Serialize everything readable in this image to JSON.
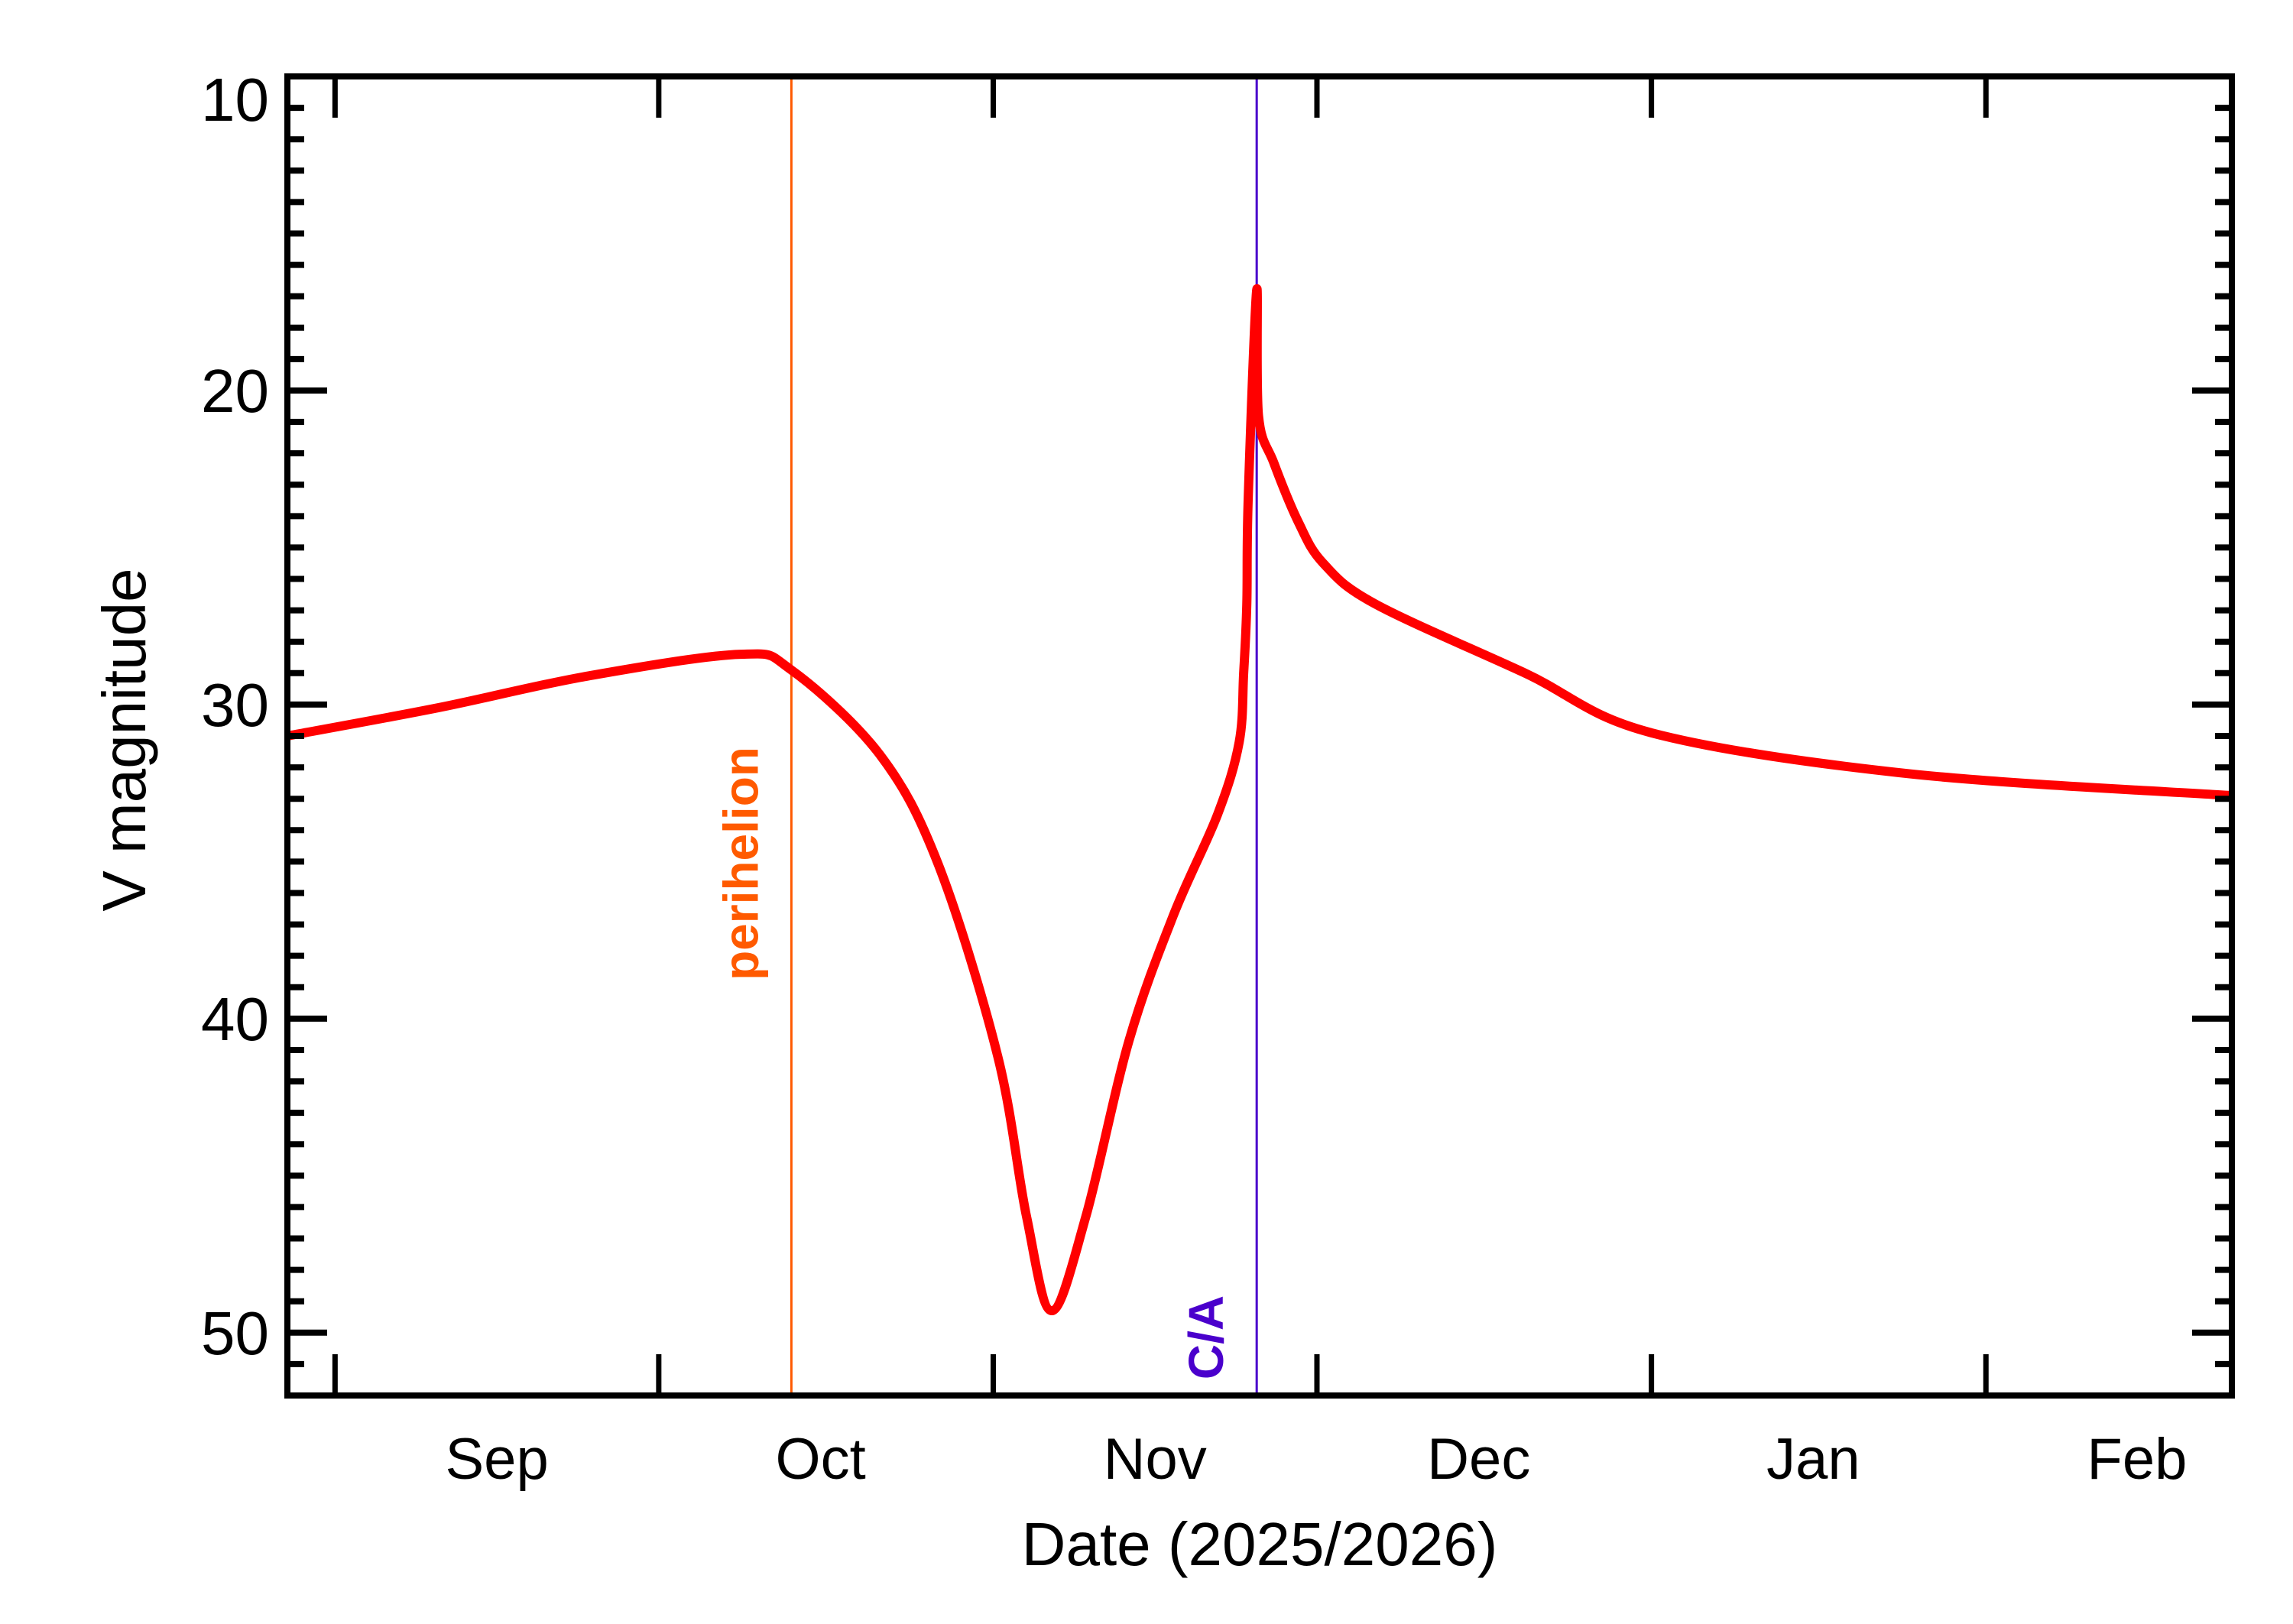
{
  "chart_data": {
    "type": "line",
    "title": "",
    "xlabel": "Date (2025/2026)",
    "ylabel": "V magnitude",
    "xlim": [
      "2025-08-27T14:00",
      "2026-02-23T19:00"
    ],
    "ylim": [
      52,
      10
    ],
    "y_inverted": true,
    "grid": false,
    "y_major_ticks": [
      10,
      20,
      30,
      40,
      50
    ],
    "y_tick_labels": [
      "10",
      "20",
      "30",
      "40",
      "50"
    ],
    "y_minor_step": 1,
    "x_major_ticks": [
      "2025-09-01",
      "2025-10-01",
      "2025-11-01",
      "2025-12-01",
      "2026-01-01",
      "2026-02-01"
    ],
    "x_tick_labels": [
      {
        "label": "Sep",
        "date": "2025-09-16"
      },
      {
        "label": "Oct",
        "date": "2025-10-16"
      },
      {
        "label": "Nov",
        "date": "2025-11-16"
      },
      {
        "label": "Dec",
        "date": "2025-12-16"
      },
      {
        "label": "Jan",
        "date": "2026-01-16"
      },
      {
        "label": "Feb",
        "date": "2026-02-15"
      }
    ],
    "series": [
      {
        "color": "#ff0000",
        "x": [
          "2025-08-27T14:00",
          "2025-09-10T14:00",
          "2025-09-24T07:00",
          "2025-10-08T14:00",
          "2025-10-13T07:00",
          "2025-10-21T12:00",
          "2025-10-26T22:00",
          "2025-11-01T10:00",
          "2025-11-04T02:00",
          "2025-11-06T10:00",
          "2025-11-09T14:00",
          "2025-11-13T14:00",
          "2025-11-17T17:00",
          "2025-11-21T19:00",
          "2025-11-23T19:00",
          "2025-11-24T05:00",
          "2025-11-24T12:00",
          "2025-11-24T15:00",
          "2025-11-25T10:00",
          "2025-11-25T14:00",
          "2025-11-27T00:00",
          "2025-11-29T07:00",
          "2025-12-01T14:00",
          "2025-12-06T10:00",
          "2025-12-20T07:00",
          "2026-01-01T00:00",
          "2026-01-24T19:00",
          "2026-02-23T19:00"
        ],
        "y": [
          31.0,
          30.1,
          29.1,
          28.4,
          28.9,
          31.6,
          35.1,
          41.2,
          46.3,
          49.3,
          46.3,
          40.7,
          36.7,
          33.5,
          31.2,
          29.0,
          26.8,
          23.5,
          16.8,
          20.8,
          22.3,
          24.2,
          25.5,
          26.8,
          29.0,
          30.9,
          32.2,
          32.9
        ]
      }
    ],
    "annotations": [
      {
        "label": "perihelion",
        "date": "2025-10-13T07:00",
        "color": "#ff5a00"
      },
      {
        "label": "C/A",
        "date": "2025-11-25T10:00",
        "color": "#4a00cc"
      }
    ]
  }
}
